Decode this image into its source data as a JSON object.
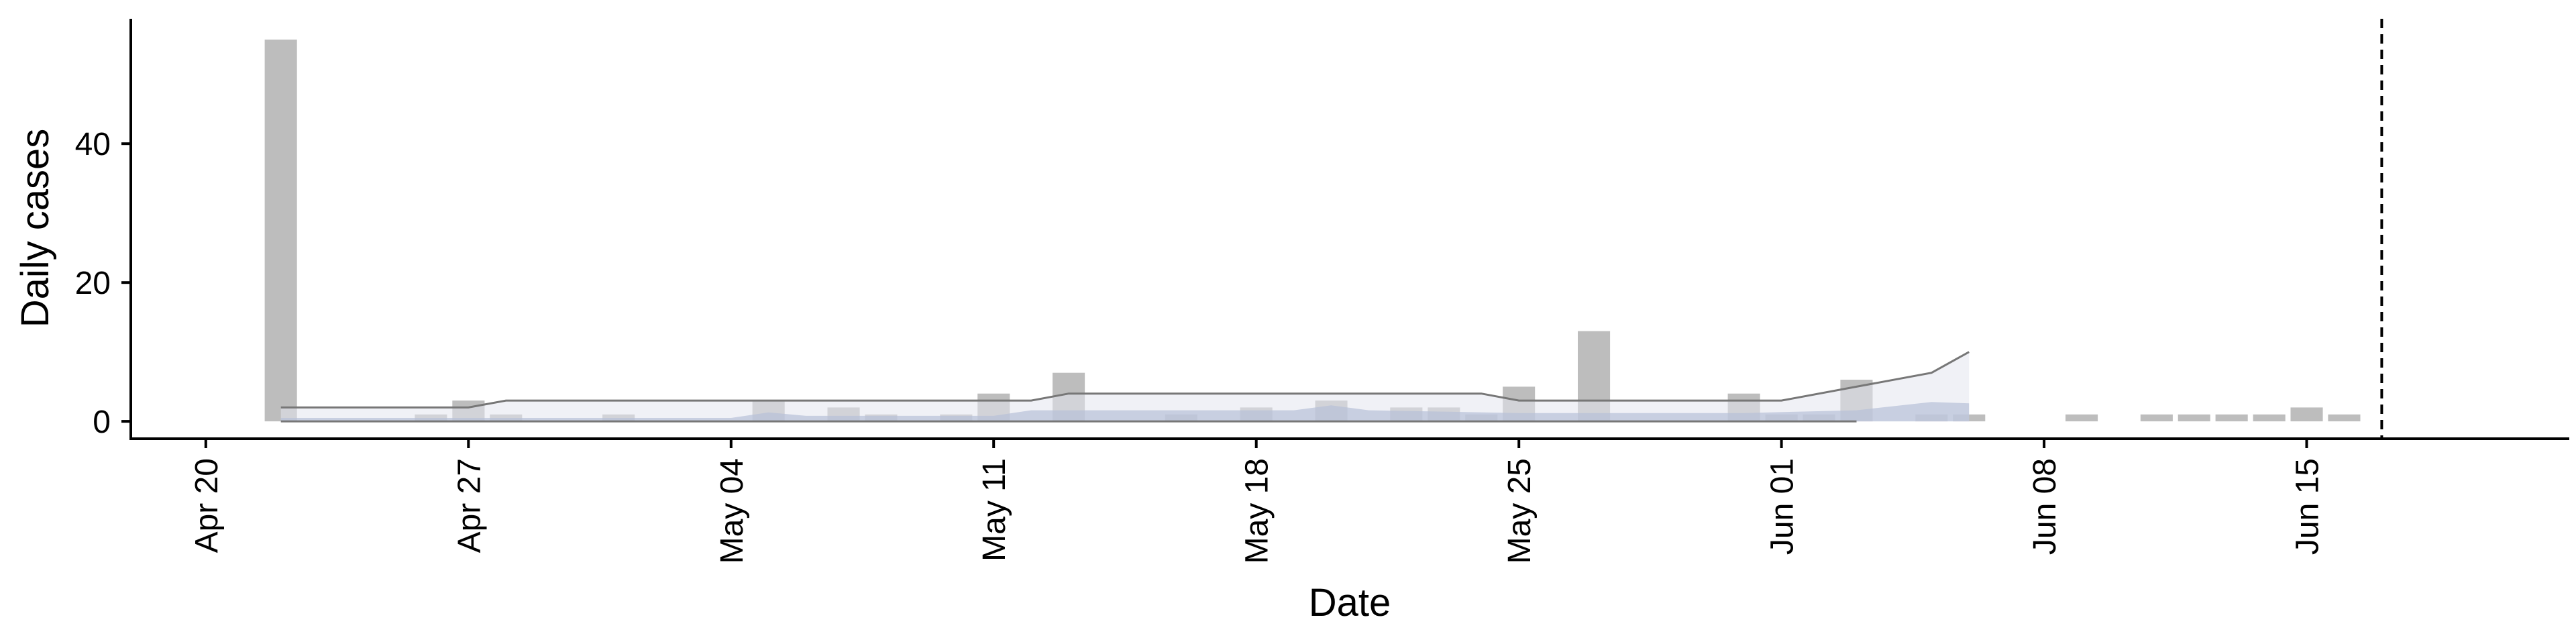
{
  "chart_data": {
    "type": "bar",
    "title": "",
    "xlabel": "Date",
    "ylabel": "Daily cases",
    "ylim": [
      -2.5,
      58
    ],
    "xlim": [
      "2020-04-18",
      "2020-06-22"
    ],
    "y_ticks": [
      0,
      20,
      40
    ],
    "x_ticks": [
      {
        "date": "2020-04-20",
        "label": "Apr 20"
      },
      {
        "date": "2020-04-27",
        "label": "Apr 27"
      },
      {
        "date": "2020-05-04",
        "label": "May 04"
      },
      {
        "date": "2020-05-11",
        "label": "May 11"
      },
      {
        "date": "2020-05-18",
        "label": "May 18"
      },
      {
        "date": "2020-05-25",
        "label": "May 25"
      },
      {
        "date": "2020-06-01",
        "label": "Jun 01"
      },
      {
        "date": "2020-06-08",
        "label": "Jun 08"
      },
      {
        "date": "2020-06-15",
        "label": "Jun 15"
      }
    ],
    "grid": false,
    "legend": "none",
    "reference_line_date": "2020-06-17",
    "series": [
      {
        "kind": "bar",
        "color": "#bdbdbd",
        "dates": [
          "2020-04-22",
          "2020-04-26",
          "2020-04-27",
          "2020-04-28",
          "2020-05-01",
          "2020-05-05",
          "2020-05-07",
          "2020-05-08",
          "2020-05-10",
          "2020-05-11",
          "2020-05-13",
          "2020-05-16",
          "2020-05-18",
          "2020-05-20",
          "2020-05-22",
          "2020-05-23",
          "2020-05-24",
          "2020-05-25",
          "2020-05-27",
          "2020-05-31",
          "2020-06-01",
          "2020-06-02",
          "2020-06-03",
          "2020-06-05",
          "2020-06-06",
          "2020-06-09",
          "2020-06-11",
          "2020-06-12",
          "2020-06-13",
          "2020-06-14",
          "2020-06-15",
          "2020-06-16"
        ],
        "values": [
          55,
          1,
          3,
          1,
          1,
          3,
          2,
          1,
          1,
          4,
          7,
          1,
          2,
          3,
          2,
          2,
          1,
          5,
          13,
          4,
          1,
          1,
          6,
          1,
          1,
          1,
          1,
          1,
          1,
          1,
          2,
          1
        ]
      },
      {
        "kind": "band-outer",
        "color": "#e3e6ee",
        "dates": [
          "2020-04-22",
          "2020-04-27",
          "2020-04-28",
          "2020-05-12",
          "2020-05-13",
          "2020-05-24",
          "2020-05-25",
          "2020-05-31",
          "2020-06-01",
          "2020-06-03",
          "2020-06-05",
          "2020-06-06"
        ],
        "lower": [
          0,
          0,
          0,
          0,
          0,
          0,
          0,
          0,
          0,
          0,
          0,
          0
        ],
        "upper": [
          2,
          2,
          3,
          3,
          4,
          4,
          3,
          3,
          3,
          5,
          7,
          10
        ]
      },
      {
        "kind": "band-inner",
        "color": "#b7c0d8",
        "dates": [
          "2020-04-22",
          "2020-05-04",
          "2020-05-05",
          "2020-05-06",
          "2020-05-11",
          "2020-05-12",
          "2020-05-19",
          "2020-05-20",
          "2020-05-21",
          "2020-05-25",
          "2020-05-31",
          "2020-06-03",
          "2020-06-05",
          "2020-06-06"
        ],
        "lower": [
          0,
          0,
          0,
          0,
          0,
          0,
          0,
          0,
          0,
          0,
          0,
          0,
          0,
          0
        ],
        "upper": [
          0.5,
          0.5,
          1.3,
          0.8,
          0.8,
          1.6,
          1.6,
          2.3,
          1.6,
          1.2,
          1.2,
          1.6,
          2.8,
          2.6
        ]
      },
      {
        "kind": "line",
        "color": "#777777",
        "dates": [
          "2020-04-22",
          "2020-04-27",
          "2020-04-28",
          "2020-05-12",
          "2020-05-13",
          "2020-05-24",
          "2020-05-25",
          "2020-05-31",
          "2020-06-01",
          "2020-06-03",
          "2020-06-05",
          "2020-06-06"
        ],
        "values": [
          2,
          2,
          3,
          3,
          4,
          4,
          3,
          3,
          3,
          5,
          7,
          10
        ]
      },
      {
        "kind": "line",
        "color": "#777777",
        "dates": [
          "2020-04-22",
          "2020-06-03"
        ],
        "values": [
          0,
          0
        ]
      }
    ]
  }
}
